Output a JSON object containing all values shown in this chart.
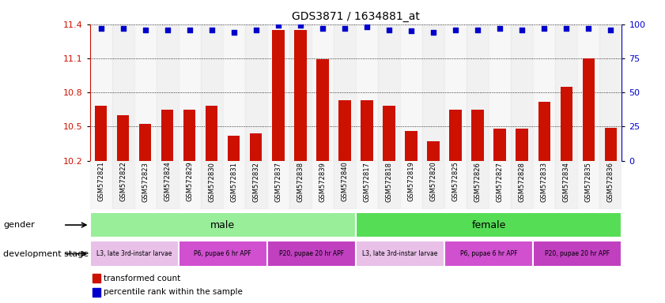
{
  "title": "GDS3871 / 1634881_at",
  "samples": [
    "GSM572821",
    "GSM572822",
    "GSM572823",
    "GSM572824",
    "GSM572829",
    "GSM572830",
    "GSM572831",
    "GSM572832",
    "GSM572837",
    "GSM572838",
    "GSM572839",
    "GSM572840",
    "GSM572817",
    "GSM572818",
    "GSM572819",
    "GSM572820",
    "GSM572825",
    "GSM572826",
    "GSM572827",
    "GSM572828",
    "GSM572833",
    "GSM572834",
    "GSM572835",
    "GSM572836"
  ],
  "bar_values": [
    10.68,
    10.6,
    10.52,
    10.65,
    10.65,
    10.68,
    10.42,
    10.44,
    11.35,
    11.35,
    11.09,
    10.73,
    10.73,
    10.68,
    10.46,
    10.37,
    10.65,
    10.65,
    10.48,
    10.48,
    10.72,
    10.85,
    11.1,
    10.49
  ],
  "dot_values_pct": [
    97,
    97,
    96,
    96,
    96,
    96,
    94,
    96,
    99,
    99,
    97,
    97,
    98,
    96,
    95,
    94,
    96,
    96,
    97,
    96,
    97,
    97,
    97,
    96
  ],
  "ylim_left": [
    10.2,
    11.4
  ],
  "yticks_left": [
    10.2,
    10.5,
    10.8,
    11.1,
    11.4
  ],
  "ylim_right": [
    0,
    100
  ],
  "yticks_right": [
    0,
    25,
    50,
    75,
    100
  ],
  "bar_color": "#cc1100",
  "dot_color": "#0000cc",
  "bar_width": 0.55,
  "gender_groups": [
    {
      "label": "male",
      "start": 0,
      "end": 12,
      "color": "#99ee99"
    },
    {
      "label": "female",
      "start": 12,
      "end": 24,
      "color": "#55dd55"
    }
  ],
  "dev_stage_groups": [
    {
      "label": "L3, late 3rd-instar larvae",
      "start": 0,
      "end": 4,
      "color": "#e8b8e8"
    },
    {
      "label": "P6, pupae 6 hr APF",
      "start": 4,
      "end": 8,
      "color": "#cc55cc"
    },
    {
      "label": "P20, pupae 20 hr APF",
      "start": 8,
      "end": 12,
      "color": "#cc44cc"
    },
    {
      "label": "L3, late 3rd-instar larvae",
      "start": 12,
      "end": 16,
      "color": "#e8b8e8"
    },
    {
      "label": "P6, pupae 6 hr APF",
      "start": 16,
      "end": 20,
      "color": "#cc55cc"
    },
    {
      "label": "P20, pupae 20 hr APF",
      "start": 20,
      "end": 24,
      "color": "#cc44cc"
    }
  ],
  "gender_label": "gender",
  "dev_stage_label": "development stage",
  "legend_bar": "transformed count",
  "legend_dot": "percentile rank within the sample",
  "background_color": "#ffffff"
}
